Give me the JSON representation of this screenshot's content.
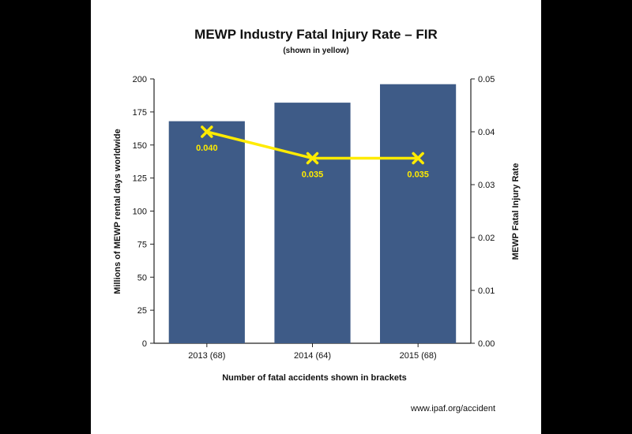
{
  "page": {
    "footer": "www.ipaf.org/accident"
  },
  "chart_data": {
    "type": "bar",
    "title": "MEWP Industry Fatal Injury Rate – FIR",
    "subtitle": "(shown in yellow)",
    "xlabel": "Number of fatal accidents shown in brackets",
    "ylabel": "Millions of MEWP rental days worldwide",
    "y2label": "MEWP Fatal Injury Rate",
    "categories": [
      "2013 (68)",
      "2014 (64)",
      "2015 (68)"
    ],
    "ylim": [
      0,
      200
    ],
    "yticks": [
      "0",
      "25",
      "50",
      "75",
      "100",
      "125",
      "150",
      "175",
      "200"
    ],
    "y2lim": [
      0,
      0.05
    ],
    "y2ticks": [
      "0.00",
      "0.01",
      "0.02",
      "0.03",
      "0.04",
      "0.05"
    ],
    "bars": {
      "values": [
        168,
        182,
        196
      ],
      "color": "#3e5b87"
    },
    "line": {
      "values": [
        0.04,
        0.035,
        0.035
      ],
      "labels": [
        "0.040",
        "0.035",
        "0.035"
      ],
      "color": "#ffeb00"
    },
    "grid": false,
    "legend": "none"
  }
}
